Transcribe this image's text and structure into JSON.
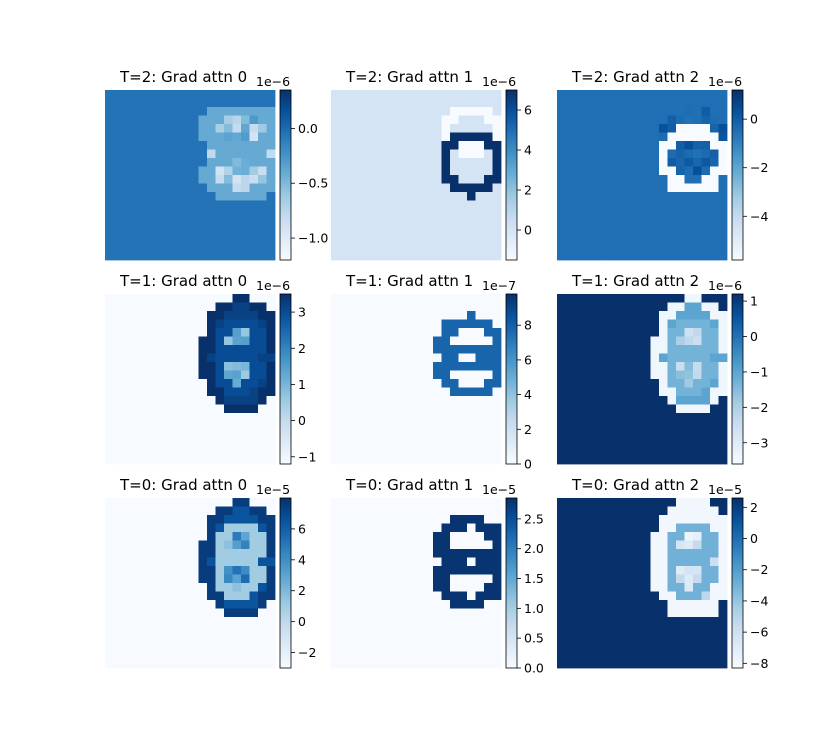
{
  "chart_data": [
    {
      "type": "heatmap",
      "title": "T=2: Grad attn 0",
      "colormap": "Blues",
      "colorbar": {
        "vmin": -1.2,
        "vmax": 0.35,
        "ticks": [
          -1.0,
          -0.5,
          0.0
        ],
        "tick_labels": [
          "−1.0",
          "−0.5",
          "0.0"
        ],
        "offset_label": "1e−6"
      },
      "background_value": -0.05,
      "shapes": [
        {
          "shape": "ring",
          "cx": 15.3,
          "cy": 4.6,
          "rx": 2.6,
          "ry": 2.2,
          "value": -1.15
        },
        {
          "shape": "ring",
          "cx": 15.3,
          "cy": 8.9,
          "rx": 2.6,
          "ry": 2.3,
          "value": -1.15
        },
        {
          "shape": "blob",
          "cx": 15.5,
          "cy": 6.8,
          "rx": 3.7,
          "ry": 5.0,
          "value": -0.6,
          "noise": 0.35
        },
        {
          "shape": "ring",
          "cx": 15.5,
          "cy": 4.0,
          "rx": 3.8,
          "ry": 2.3,
          "value": -0.4
        },
        {
          "shape": "ring",
          "cx": 15.5,
          "cy": 9.5,
          "rx": 3.8,
          "ry": 2.3,
          "value": -0.4
        }
      ]
    },
    {
      "type": "heatmap",
      "title": "T=2: Grad attn 1",
      "colormap": "Blues",
      "colorbar": {
        "vmin": -1.5,
        "vmax": 7.0,
        "ticks": [
          0,
          2,
          4,
          6
        ],
        "tick_labels": [
          "0",
          "2",
          "4",
          "6"
        ],
        "offset_label": "1e−6"
      },
      "background_value": 0.0,
      "shapes": [
        {
          "shape": "ring",
          "cx": 16.0,
          "cy": 4.2,
          "rx": 3.0,
          "ry": 2.3,
          "value": -1.5
        },
        {
          "shape": "ring",
          "cx": 16.0,
          "cy": 8.1,
          "rx": 3.0,
          "ry": 3.2,
          "value": 7.0
        }
      ]
    },
    {
      "type": "heatmap",
      "title": "T=2: Grad attn 2",
      "colormap": "Blues",
      "colorbar": {
        "vmin": -5.8,
        "vmax": 1.2,
        "ticks": [
          -4,
          -2,
          0
        ],
        "tick_labels": [
          "−4",
          "−2",
          "0"
        ],
        "offset_label": "1e−6"
      },
      "background_value": -0.5,
      "shapes": [
        {
          "shape": "blob",
          "cx": 15.5,
          "cy": 5.6,
          "rx": 4.2,
          "ry": 4.3,
          "value": -0.1,
          "noise": 0.5
        },
        {
          "shape": "ring",
          "cx": 15.5,
          "cy": 7.7,
          "rx": 3.4,
          "ry": 3.4,
          "value": -5.8
        }
      ]
    },
    {
      "type": "heatmap",
      "title": "T=1: Grad attn 0",
      "colormap": "Blues",
      "colorbar": {
        "vmin": -1.2,
        "vmax": 3.5,
        "ticks": [
          -1,
          0,
          1,
          2,
          3
        ],
        "tick_labels": [
          "−1",
          "0",
          "1",
          "2",
          "3"
        ],
        "offset_label": "1e−6"
      },
      "background_value": -1.2,
      "shapes": [
        {
          "shape": "blob",
          "cx": 15.5,
          "cy": 6.8,
          "rx": 4.1,
          "ry": 6.0,
          "value": 1.0,
          "noise": 0.5
        },
        {
          "shape": "ring",
          "cx": 15.5,
          "cy": 6.8,
          "rx": 4.0,
          "ry": 5.9,
          "value": 3.5
        },
        {
          "shape": "ring",
          "cx": 15.5,
          "cy": 6.8,
          "rx": 2.8,
          "ry": 4.7,
          "value": 3.2
        },
        {
          "shape": "ring",
          "cx": 15.3,
          "cy": 4.8,
          "rx": 2.3,
          "ry": 2.0,
          "value": 3.0
        },
        {
          "shape": "ring",
          "cx": 15.3,
          "cy": 8.7,
          "rx": 2.3,
          "ry": 2.1,
          "value": 3.0
        }
      ]
    },
    {
      "type": "heatmap",
      "title": "T=1: Grad attn 1",
      "colormap": "Blues",
      "colorbar": {
        "vmin": 0,
        "vmax": 9.8,
        "ticks": [
          0,
          2,
          4,
          6,
          8
        ],
        "tick_labels": [
          "0",
          "2",
          "4",
          "6",
          "8"
        ],
        "offset_label": "1e−7"
      },
      "background_value": 0.0,
      "shapes": [
        {
          "shape": "ring",
          "cx": 15.8,
          "cy": 5.3,
          "rx": 3.2,
          "ry": 2.6,
          "value": 7.8
        },
        {
          "shape": "ring",
          "cx": 15.8,
          "cy": 8.5,
          "rx": 3.2,
          "ry": 2.6,
          "value": 7.8
        }
      ]
    },
    {
      "type": "heatmap",
      "title": "T=1: Grad attn 2",
      "colormap": "Blues",
      "colorbar": {
        "vmin": -3.6,
        "vmax": 1.2,
        "ticks": [
          -3,
          -2,
          -1,
          0,
          1
        ],
        "tick_labels": [
          "−3",
          "−2",
          "−1",
          "0",
          "1"
        ],
        "offset_label": "1e−6"
      },
      "background_value": 1.2,
      "shapes": [
        {
          "shape": "blob",
          "cx": 15.5,
          "cy": 6.8,
          "rx": 4.1,
          "ry": 6.0,
          "value": -2.0,
          "noise": 0.7
        },
        {
          "shape": "ring",
          "cx": 15.5,
          "cy": 6.8,
          "rx": 4.0,
          "ry": 5.9,
          "value": -3.4
        },
        {
          "shape": "ring",
          "cx": 15.5,
          "cy": 6.8,
          "rx": 2.8,
          "ry": 4.7,
          "value": -1.0
        },
        {
          "shape": "ring",
          "cx": 15.3,
          "cy": 4.8,
          "rx": 2.3,
          "ry": 2.0,
          "value": -1.3
        },
        {
          "shape": "ring",
          "cx": 15.3,
          "cy": 8.7,
          "rx": 2.3,
          "ry": 2.1,
          "value": -1.3
        }
      ]
    },
    {
      "type": "heatmap",
      "title": "T=0: Grad attn 0",
      "colormap": "Blues",
      "colorbar": {
        "vmin": -3.0,
        "vmax": 8.0,
        "ticks": [
          -2,
          0,
          2,
          4,
          6
        ],
        "tick_labels": [
          "−2",
          "0",
          "2",
          "4",
          "6"
        ],
        "offset_label": "1e−5"
      },
      "background_value": -3.0,
      "shapes": [
        {
          "shape": "blob",
          "cx": 15.5,
          "cy": 6.8,
          "rx": 4.1,
          "ry": 6.0,
          "value": 3.5,
          "noise": 2.0
        },
        {
          "shape": "ring",
          "cx": 15.5,
          "cy": 6.8,
          "rx": 4.0,
          "ry": 5.9,
          "value": 7.5
        },
        {
          "shape": "ring",
          "cx": 15.5,
          "cy": 6.8,
          "rx": 2.8,
          "ry": 4.7,
          "value": 6.5
        },
        {
          "shape": "ring",
          "cx": 15.3,
          "cy": 4.8,
          "rx": 2.3,
          "ry": 2.0,
          "value": 1.0
        },
        {
          "shape": "ring",
          "cx": 15.3,
          "cy": 8.7,
          "rx": 2.3,
          "ry": 2.1,
          "value": 1.0
        }
      ]
    },
    {
      "type": "heatmap",
      "title": "T=0: Grad attn 1",
      "colormap": "Blues",
      "colorbar": {
        "vmin": 0.0,
        "vmax": 2.85,
        "ticks": [
          0.0,
          0.5,
          1.0,
          1.5,
          2.0,
          2.5
        ],
        "tick_labels": [
          "0.0",
          "0.5",
          "1.0",
          "1.5",
          "2.0",
          "2.5"
        ],
        "offset_label": "1e−5"
      },
      "background_value": 0.0,
      "shapes": [
        {
          "shape": "ring",
          "cx": 15.8,
          "cy": 5.0,
          "rx": 3.2,
          "ry": 2.8,
          "value": 2.8
        },
        {
          "shape": "ring",
          "cx": 15.8,
          "cy": 9.0,
          "rx": 3.2,
          "ry": 2.8,
          "value": 2.8
        }
      ]
    },
    {
      "type": "heatmap",
      "title": "T=0: Grad attn 2",
      "colormap": "Blues",
      "colorbar": {
        "vmin": -8.3,
        "vmax": 2.6,
        "ticks": [
          -8,
          -6,
          -4,
          -2,
          0,
          2
        ],
        "tick_labels": [
          "−8",
          "−6",
          "−4",
          "−2",
          "0",
          "2"
        ],
        "offset_label": "1e−5"
      },
      "background_value": 2.6,
      "shapes": [
        {
          "shape": "blob",
          "cx": 15.5,
          "cy": 6.8,
          "rx": 4.4,
          "ry": 6.2,
          "value": -6.5,
          "noise": 1.8
        },
        {
          "shape": "ring",
          "cx": 15.5,
          "cy": 6.8,
          "rx": 4.2,
          "ry": 6.0,
          "value": -8.0
        },
        {
          "shape": "ring",
          "cx": 15.3,
          "cy": 4.8,
          "rx": 2.3,
          "ry": 2.0,
          "value": -3.0
        },
        {
          "shape": "ring",
          "cx": 15.3,
          "cy": 8.7,
          "rx": 2.3,
          "ry": 2.1,
          "value": -3.0
        }
      ]
    }
  ]
}
